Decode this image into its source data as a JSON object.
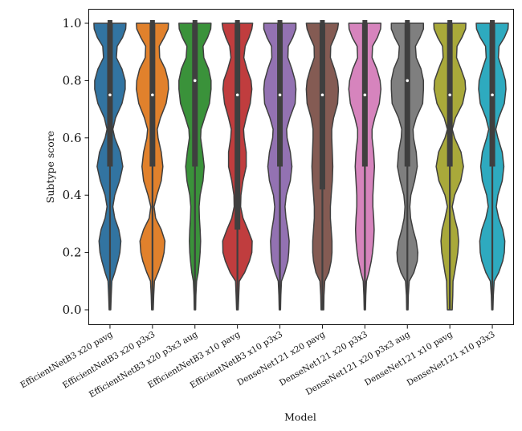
{
  "chart_data": {
    "type": "violin",
    "title": "",
    "xlabel": "Model",
    "ylabel": "Subtype score",
    "ylim": [
      -0.05,
      1.05
    ],
    "yticks": [
      0.0,
      0.2,
      0.4,
      0.6,
      0.8,
      1.0
    ],
    "ytick_labels": [
      "0.0",
      "0.2",
      "0.4",
      "0.6",
      "0.8",
      "1.0"
    ],
    "grid": false,
    "legend": "none",
    "inner_color": "#3f3f3f",
    "categories": [
      "EfficientNetB3 x20 pavg",
      "EfficientNetB3 x20 p3x3",
      "EfficientNetB3 x20 p3x3 aug",
      "EfficientNetB3 x10 pavg",
      "EfficientNetB3 x10 p3x3",
      "DenseNet121 x20 pavg",
      "DenseNet121 x20 p3x3",
      "DenseNet121 x20 p3x3 aug",
      "DenseNet121 x10 pavg",
      "DenseNet121 x10 p3x3"
    ],
    "density_y": [
      0.0,
      0.05,
      0.1,
      0.13,
      0.17,
      0.2,
      0.24,
      0.28,
      0.32,
      0.36,
      0.4,
      0.45,
      0.5,
      0.55,
      0.6,
      0.63,
      0.67,
      0.72,
      0.77,
      0.8,
      0.84,
      0.88,
      0.92,
      0.95,
      0.98,
      1.0
    ],
    "series": [
      {
        "name": "EfficientNetB3 x20 pavg",
        "color": "#3274a1",
        "median": 0.75,
        "q1": 0.5,
        "q3": 1.0,
        "min": 0.0,
        "max": 1.0,
        "density": [
          0.05,
          0.08,
          0.12,
          0.3,
          0.5,
          0.62,
          0.68,
          0.55,
          0.3,
          0.18,
          0.3,
          0.6,
          0.8,
          0.65,
          0.3,
          0.18,
          0.35,
          0.75,
          0.95,
          0.95,
          0.75,
          0.4,
          0.45,
          0.78,
          0.98,
          1.0
        ]
      },
      {
        "name": "EfficientNetB3 x20 p3x3",
        "color": "#e1812c",
        "median": 0.75,
        "q1": 0.5,
        "q3": 1.0,
        "min": 0.0,
        "max": 1.0,
        "density": [
          0.05,
          0.08,
          0.12,
          0.35,
          0.6,
          0.72,
          0.78,
          0.55,
          0.2,
          0.1,
          0.28,
          0.55,
          0.65,
          0.55,
          0.35,
          0.3,
          0.5,
          0.85,
          1.0,
          0.98,
          0.8,
          0.45,
          0.42,
          0.72,
          0.98,
          1.0
        ]
      },
      {
        "name": "EfficientNetB3 x20 p3x3 aug",
        "color": "#3a923a",
        "median": 0.8,
        "q1": 0.5,
        "q3": 1.0,
        "min": 0.0,
        "max": 1.0,
        "density": [
          0.04,
          0.06,
          0.1,
          0.2,
          0.28,
          0.32,
          0.35,
          0.32,
          0.28,
          0.26,
          0.32,
          0.5,
          0.58,
          0.48,
          0.35,
          0.38,
          0.6,
          0.9,
          1.0,
          1.0,
          0.85,
          0.55,
          0.5,
          0.78,
          0.98,
          1.0
        ]
      },
      {
        "name": "EfficientNetB3 x10 pavg",
        "color": "#c03d3e",
        "median": 0.75,
        "q1": 0.28,
        "q3": 1.0,
        "min": 0.0,
        "max": 1.0,
        "density": [
          0.05,
          0.08,
          0.12,
          0.45,
          0.75,
          0.9,
          0.92,
          0.65,
          0.35,
          0.2,
          0.22,
          0.35,
          0.55,
          0.55,
          0.42,
          0.38,
          0.55,
          0.8,
          0.9,
          0.85,
          0.6,
          0.4,
          0.48,
          0.72,
          0.9,
          0.95
        ]
      },
      {
        "name": "EfficientNetB3 x10 p3x3",
        "color": "#9372b2",
        "median": 0.75,
        "q1": 0.5,
        "q3": 1.0,
        "min": 0.0,
        "max": 1.0,
        "density": [
          0.04,
          0.06,
          0.1,
          0.3,
          0.5,
          0.55,
          0.58,
          0.5,
          0.38,
          0.32,
          0.4,
          0.65,
          0.75,
          0.65,
          0.45,
          0.42,
          0.62,
          0.95,
          1.0,
          0.95,
          0.75,
          0.5,
          0.52,
          0.8,
          1.0,
          1.0
        ]
      },
      {
        "name": "DenseNet121 x20 pavg",
        "color": "#845b53",
        "median": 0.75,
        "q1": 0.42,
        "q3": 1.0,
        "min": 0.0,
        "max": 1.0,
        "density": [
          0.08,
          0.1,
          0.15,
          0.4,
          0.55,
          0.6,
          0.6,
          0.55,
          0.5,
          0.5,
          0.55,
          0.62,
          0.65,
          0.62,
          0.58,
          0.58,
          0.7,
          0.95,
          1.0,
          0.95,
          0.75,
          0.5,
          0.52,
          0.75,
          0.95,
          1.0
        ]
      },
      {
        "name": "DenseNet121 x20 p3x3",
        "color": "#d684bd",
        "median": 0.75,
        "q1": 0.5,
        "q3": 1.0,
        "min": 0.0,
        "max": 1.0,
        "density": [
          0.04,
          0.06,
          0.1,
          0.25,
          0.4,
          0.48,
          0.55,
          0.58,
          0.55,
          0.5,
          0.5,
          0.55,
          0.6,
          0.55,
          0.45,
          0.45,
          0.62,
          0.9,
          1.0,
          0.95,
          0.75,
          0.45,
          0.48,
          0.78,
          0.98,
          1.0
        ]
      },
      {
        "name": "DenseNet121 x20 p3x3 aug",
        "color": "#7f7f7f",
        "median": 0.8,
        "q1": 0.5,
        "q3": 1.0,
        "min": 0.0,
        "max": 1.0,
        "density": [
          0.04,
          0.06,
          0.12,
          0.4,
          0.62,
          0.65,
          0.55,
          0.35,
          0.2,
          0.15,
          0.22,
          0.45,
          0.62,
          0.55,
          0.38,
          0.35,
          0.55,
          0.95,
          1.0,
          1.0,
          0.85,
          0.55,
          0.5,
          0.78,
          1.0,
          1.0
        ]
      },
      {
        "name": "DenseNet121 x10 pavg",
        "color": "#a9a93a",
        "median": 0.75,
        "q1": 0.5,
        "q3": 1.0,
        "min": 0.0,
        "max": 1.0,
        "density": [
          0.15,
          0.18,
          0.2,
          0.3,
          0.42,
          0.5,
          0.55,
          0.48,
          0.3,
          0.15,
          0.3,
          0.68,
          0.85,
          0.7,
          0.3,
          0.15,
          0.35,
          0.8,
          0.98,
          0.95,
          0.7,
          0.42,
          0.45,
          0.75,
          0.98,
          1.0
        ]
      },
      {
        "name": "DenseNet121 x10 p3x3",
        "color": "#2eaabf",
        "median": 0.75,
        "q1": 0.5,
        "q3": 1.0,
        "min": 0.0,
        "max": 1.0,
        "density": [
          0.04,
          0.06,
          0.12,
          0.4,
          0.65,
          0.75,
          0.78,
          0.65,
          0.4,
          0.25,
          0.35,
          0.62,
          0.72,
          0.62,
          0.35,
          0.22,
          0.4,
          0.75,
          0.85,
          0.82,
          0.62,
          0.38,
          0.42,
          0.75,
          0.98,
          1.0
        ]
      }
    ]
  }
}
